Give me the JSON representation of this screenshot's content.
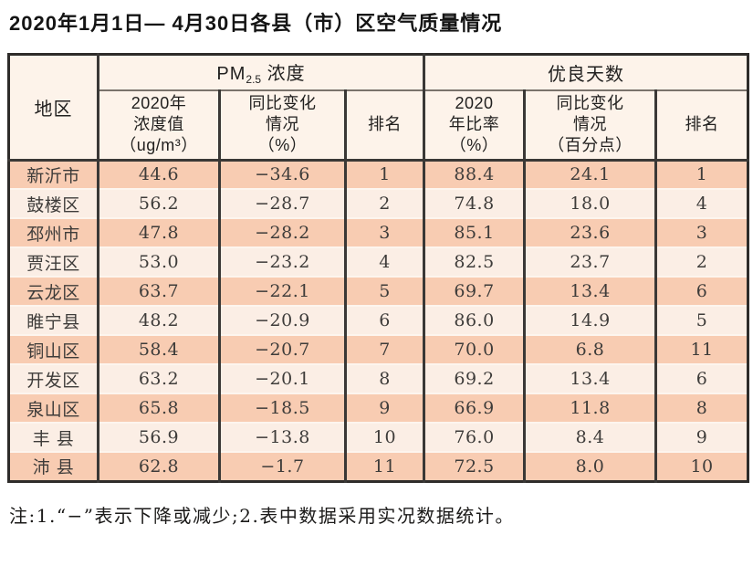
{
  "title": "2020年1月1日— 4月30日各县（市）区空气质量情况",
  "colors": {
    "row_odd_bg": "#f8ccb2",
    "row_even_bg": "#fbeee5",
    "header_bg": "#fdf3ea",
    "border_dark": "#3a3836",
    "row_separator": "#fdf5ee"
  },
  "table": {
    "region_header": "地区",
    "groups": [
      {
        "main": "PM",
        "sub": "2.5",
        "rest": " 浓度"
      },
      {
        "main": "优良天数"
      }
    ],
    "subheaders": {
      "pm25_value": "2020年\n浓度值\n（ug/m³）",
      "pm25_change": "同比变化\n情况\n（%）",
      "pm25_rank": "排名",
      "ratio_value": "2020\n年比率\n（%）",
      "ratio_change": "同比变化\n情况\n（百分点）",
      "ratio_rank": "排名"
    },
    "rows": [
      {
        "region": "新沂市",
        "pm25_value": "44.6",
        "pm25_change": "−34.6",
        "pm25_rank": "1",
        "ratio_value": "88.4",
        "ratio_change": "24.1",
        "ratio_rank": "1"
      },
      {
        "region": "鼓楼区",
        "pm25_value": "56.2",
        "pm25_change": "−28.7",
        "pm25_rank": "2",
        "ratio_value": "74.8",
        "ratio_change": "18.0",
        "ratio_rank": "4"
      },
      {
        "region": "邳州市",
        "pm25_value": "47.8",
        "pm25_change": "−28.2",
        "pm25_rank": "3",
        "ratio_value": "85.1",
        "ratio_change": "23.6",
        "ratio_rank": "3"
      },
      {
        "region": "贾汪区",
        "pm25_value": "53.0",
        "pm25_change": "−23.2",
        "pm25_rank": "4",
        "ratio_value": "82.5",
        "ratio_change": "23.7",
        "ratio_rank": "2"
      },
      {
        "region": "云龙区",
        "pm25_value": "63.7",
        "pm25_change": "−22.1",
        "pm25_rank": "5",
        "ratio_value": "69.7",
        "ratio_change": "13.4",
        "ratio_rank": "6"
      },
      {
        "region": "睢宁县",
        "pm25_value": "48.2",
        "pm25_change": "−20.9",
        "pm25_rank": "6",
        "ratio_value": "86.0",
        "ratio_change": "14.9",
        "ratio_rank": "5"
      },
      {
        "region": "铜山区",
        "pm25_value": "58.4",
        "pm25_change": "−20.7",
        "pm25_rank": "7",
        "ratio_value": "70.0",
        "ratio_change": "6.8",
        "ratio_rank": "11"
      },
      {
        "region": "开发区",
        "pm25_value": "63.2",
        "pm25_change": "−20.1",
        "pm25_rank": "8",
        "ratio_value": "69.2",
        "ratio_change": "13.4",
        "ratio_rank": "6"
      },
      {
        "region": "泉山区",
        "pm25_value": "65.8",
        "pm25_change": "−18.5",
        "pm25_rank": "9",
        "ratio_value": "66.9",
        "ratio_change": "11.8",
        "ratio_rank": "8"
      },
      {
        "region": "丰 县",
        "pm25_value": "56.9",
        "pm25_change": "−13.8",
        "pm25_rank": "10",
        "ratio_value": "76.0",
        "ratio_change": "8.4",
        "ratio_rank": "9"
      },
      {
        "region": "沛 县",
        "pm25_value": "62.8",
        "pm25_change": "−1.7",
        "pm25_rank": "11",
        "ratio_value": "72.5",
        "ratio_change": "8.0",
        "ratio_rank": "10"
      }
    ]
  },
  "footnote": "注:1.“−”表示下降或减少;2.表中数据采用实况数据统计。"
}
